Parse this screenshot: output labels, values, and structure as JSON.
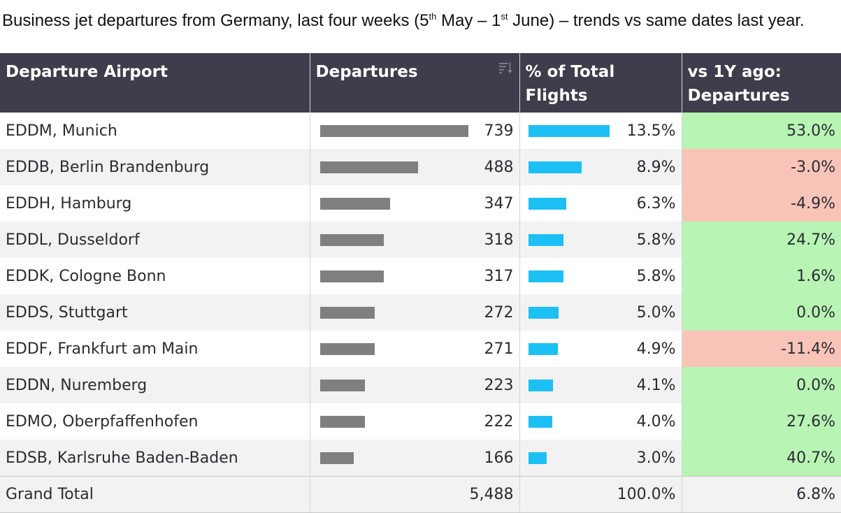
{
  "title": {
    "part1": "Business jet departures from Germany, last four weeks (5",
    "sup1": "th",
    "part2": " May – 1",
    "sup2": "st",
    "part3": " June) – trends vs same dates last year."
  },
  "columns": {
    "airport": "Departure Airport",
    "departures": "Departures",
    "pct_total": "% of Total Flights",
    "vs_1y": "vs 1Y ago: Departures"
  },
  "sort_icon": "sort-descending-icon",
  "colors": {
    "header_bg": "#3f3c4b",
    "departures_bar": "#7f7f7f",
    "pct_bar": "#1cc0f4",
    "positive": "#b8f5b4",
    "negative": "#f8c4b8"
  },
  "chart_data": {
    "type": "table",
    "columns": [
      "Departure Airport",
      "Departures",
      "% of Total Flights",
      "vs 1Y ago: Departures"
    ],
    "rows": [
      {
        "airport": "EDDM, Munich",
        "departures": 739,
        "departures_label": "739",
        "pct": 13.5,
        "pct_label": "13.5%",
        "vs": 53.0,
        "vs_label": "53.0%"
      },
      {
        "airport": "EDDB, Berlin Brandenburg",
        "departures": 488,
        "departures_label": "488",
        "pct": 8.9,
        "pct_label": "8.9%",
        "vs": -3.0,
        "vs_label": "-3.0%"
      },
      {
        "airport": "EDDH, Hamburg",
        "departures": 347,
        "departures_label": "347",
        "pct": 6.3,
        "pct_label": "6.3%",
        "vs": -4.9,
        "vs_label": "-4.9%"
      },
      {
        "airport": "EDDL, Dusseldorf",
        "departures": 318,
        "departures_label": "318",
        "pct": 5.8,
        "pct_label": "5.8%",
        "vs": 24.7,
        "vs_label": "24.7%"
      },
      {
        "airport": "EDDK, Cologne Bonn",
        "departures": 317,
        "departures_label": "317",
        "pct": 5.8,
        "pct_label": "5.8%",
        "vs": 1.6,
        "vs_label": "1.6%"
      },
      {
        "airport": "EDDS, Stuttgart",
        "departures": 272,
        "departures_label": "272",
        "pct": 5.0,
        "pct_label": "5.0%",
        "vs": 0.0,
        "vs_label": "0.0%"
      },
      {
        "airport": "EDDF, Frankfurt am Main",
        "departures": 271,
        "departures_label": "271",
        "pct": 4.9,
        "pct_label": "4.9%",
        "vs": -11.4,
        "vs_label": "-11.4%"
      },
      {
        "airport": "EDDN, Nuremberg",
        "departures": 223,
        "departures_label": "223",
        "pct": 4.1,
        "pct_label": "4.1%",
        "vs": 0.0,
        "vs_label": "0.0%"
      },
      {
        "airport": "EDMO, Oberpfaffenhofen",
        "departures": 222,
        "departures_label": "222",
        "pct": 4.0,
        "pct_label": "4.0%",
        "vs": 27.6,
        "vs_label": "27.6%"
      },
      {
        "airport": "EDSB, Karlsruhe Baden-Baden",
        "departures": 166,
        "departures_label": "166",
        "pct": 3.0,
        "pct_label": "3.0%",
        "vs": 40.7,
        "vs_label": "40.7%"
      }
    ],
    "total": {
      "label": "Grand Total",
      "departures": "5,488",
      "pct": "100.0%",
      "vs": "6.8%"
    }
  }
}
